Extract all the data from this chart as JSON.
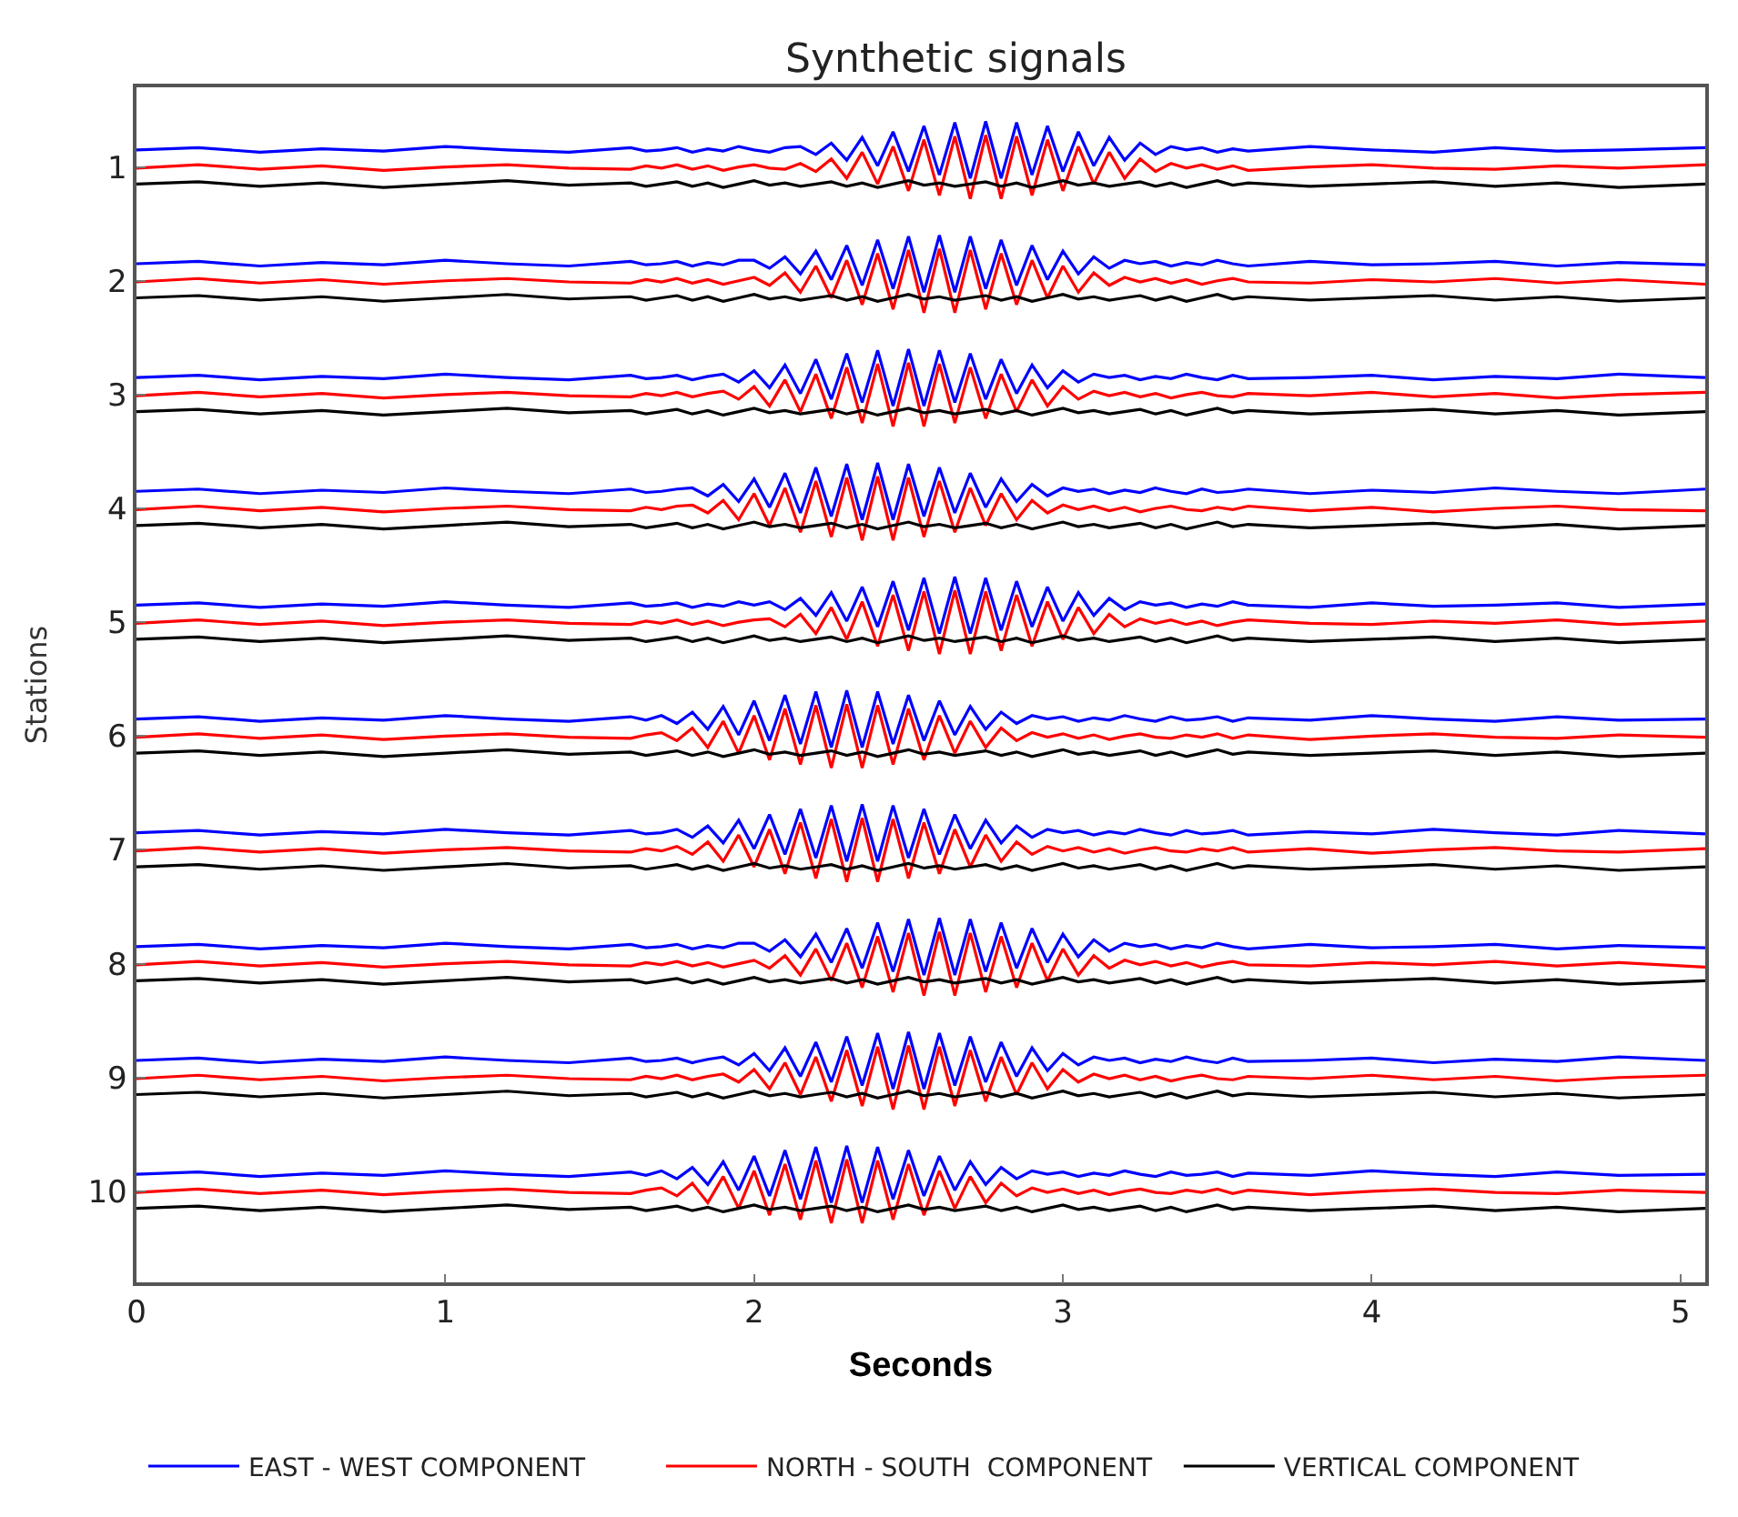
{
  "chart_data": {
    "type": "line",
    "title": "Synthetic signals",
    "xlabel": "Seconds",
    "ylabel": "Stations",
    "x": [
      0,
      0.2,
      0.4,
      0.6,
      0.8,
      1.0,
      1.2,
      1.4,
      1.6,
      1.65,
      1.7,
      1.75,
      1.8,
      1.85,
      1.9,
      1.95,
      2.0,
      2.05,
      2.1,
      2.15,
      2.2,
      2.25,
      2.3,
      2.35,
      2.4,
      2.45,
      2.5,
      2.55,
      2.6,
      2.65,
      2.7,
      2.75,
      2.8,
      2.85,
      2.9,
      2.95,
      3.0,
      3.05,
      3.1,
      3.15,
      3.2,
      3.25,
      3.3,
      3.35,
      3.4,
      3.45,
      3.5,
      3.55,
      3.6,
      3.8,
      4.0,
      4.2,
      4.4,
      4.6,
      4.8,
      5.08
    ],
    "xlim": [
      0,
      5.08
    ],
    "xticks": [
      0,
      1,
      2,
      3,
      4,
      5
    ],
    "ylim": [
      10.8,
      0.3
    ],
    "yticks": [
      1,
      2,
      3,
      4,
      5,
      6,
      7,
      8,
      9,
      10
    ],
    "legend": "bottom",
    "marker": "none",
    "line_style": "solid",
    "series": [
      {
        "name": "EAST - WEST COMPONENT",
        "color": "#0000ff",
        "values": [
          0.85,
          0.83,
          0.87,
          0.84,
          0.86,
          0.82,
          0.85,
          0.87,
          0.83,
          0.86,
          0.85,
          0.83,
          0.87,
          0.84,
          0.86,
          0.82,
          0.85,
          0.87,
          0.83,
          0.82,
          0.89,
          0.79,
          0.94,
          0.74,
          0.99,
          0.69,
          1.04,
          0.64,
          1.07,
          0.61,
          1.1,
          0.6,
          1.1,
          0.61,
          1.07,
          0.64,
          1.04,
          0.69,
          0.99,
          0.74,
          0.94,
          0.79,
          0.89,
          0.82,
          0.85,
          0.83,
          0.87,
          0.84,
          0.86,
          0.82,
          0.85,
          0.87,
          0.83,
          0.86,
          0.85,
          0.83
        ]
      },
      {
        "name": "NORTH - SOUTH  COMPONENT",
        "color": "#ff0000",
        "values": [
          1.01,
          0.98,
          1.02,
          0.99,
          1.03,
          1.0,
          0.98,
          1.01,
          1.02,
          0.99,
          1.01,
          0.98,
          1.02,
          0.99,
          1.03,
          1.0,
          0.98,
          1.01,
          1.02,
          0.97,
          1.04,
          0.93,
          1.1,
          0.87,
          1.15,
          0.82,
          1.21,
          0.76,
          1.25,
          0.73,
          1.28,
          0.72,
          1.28,
          0.73,
          1.25,
          0.76,
          1.21,
          0.82,
          1.15,
          0.87,
          1.1,
          0.93,
          1.04,
          0.97,
          1.01,
          0.98,
          1.02,
          0.99,
          1.03,
          1.0,
          0.98,
          1.01,
          1.02,
          0.99,
          1.01,
          0.98
        ]
      },
      {
        "name": "VERTICAL COMPONENT",
        "color": "#000000",
        "values": [
          1.15,
          1.13,
          1.17,
          1.14,
          1.18,
          1.15,
          1.12,
          1.16,
          1.14,
          1.17,
          1.15,
          1.13,
          1.17,
          1.14,
          1.18,
          1.15,
          1.12,
          1.16,
          1.14,
          1.17,
          1.15,
          1.13,
          1.17,
          1.14,
          1.18,
          1.15,
          1.12,
          1.16,
          1.14,
          1.17,
          1.15,
          1.13,
          1.17,
          1.14,
          1.18,
          1.15,
          1.12,
          1.16,
          1.14,
          1.17,
          1.15,
          1.13,
          1.17,
          1.14,
          1.18,
          1.15,
          1.12,
          1.16,
          1.14,
          1.17,
          1.15,
          1.13,
          1.17,
          1.14,
          1.18,
          1.15
        ]
      },
      {
        "color": "#0000ff",
        "values": [
          1.85,
          1.83,
          1.87,
          1.84,
          1.86,
          1.82,
          1.85,
          1.87,
          1.83,
          1.86,
          1.85,
          1.83,
          1.87,
          1.84,
          1.86,
          1.82,
          1.82,
          1.89,
          1.79,
          1.94,
          1.74,
          1.99,
          1.69,
          2.04,
          1.64,
          2.07,
          1.61,
          2.1,
          1.6,
          2.1,
          1.61,
          2.07,
          1.64,
          2.04,
          1.69,
          1.99,
          1.74,
          1.94,
          1.79,
          1.89,
          1.82,
          1.85,
          1.83,
          1.87,
          1.84,
          1.86,
          1.82,
          1.85,
          1.87,
          1.83,
          1.86,
          1.85,
          1.83,
          1.87,
          1.84,
          1.86
        ]
      },
      {
        "color": "#ff0000",
        "values": [
          2.01,
          1.98,
          2.02,
          1.99,
          2.03,
          2.0,
          1.98,
          2.01,
          2.02,
          1.99,
          2.01,
          1.98,
          2.02,
          1.99,
          2.03,
          2.0,
          1.97,
          2.04,
          1.93,
          2.1,
          1.87,
          2.15,
          1.82,
          2.21,
          1.76,
          2.25,
          1.73,
          2.28,
          1.72,
          2.28,
          1.73,
          2.25,
          1.76,
          2.21,
          1.82,
          2.15,
          1.87,
          2.1,
          1.93,
          2.04,
          1.97,
          2.01,
          1.98,
          2.02,
          1.99,
          2.03,
          2.0,
          1.98,
          2.01,
          2.02,
          1.99,
          2.01,
          1.98,
          2.02,
          1.99,
          2.03
        ]
      },
      {
        "color": "#000000",
        "values": [
          2.15,
          2.13,
          2.17,
          2.14,
          2.18,
          2.15,
          2.12,
          2.16,
          2.14,
          2.17,
          2.15,
          2.13,
          2.17,
          2.14,
          2.18,
          2.15,
          2.12,
          2.16,
          2.14,
          2.17,
          2.15,
          2.13,
          2.17,
          2.14,
          2.18,
          2.15,
          2.12,
          2.16,
          2.14,
          2.17,
          2.15,
          2.13,
          2.17,
          2.14,
          2.18,
          2.15,
          2.12,
          2.16,
          2.14,
          2.17,
          2.15,
          2.13,
          2.17,
          2.14,
          2.18,
          2.15,
          2.12,
          2.16,
          2.14,
          2.17,
          2.15,
          2.13,
          2.17,
          2.14,
          2.18,
          2.15
        ]
      },
      {
        "color": "#0000ff",
        "values": [
          2.85,
          2.83,
          2.87,
          2.84,
          2.86,
          2.82,
          2.85,
          2.87,
          2.83,
          2.86,
          2.85,
          2.83,
          2.87,
          2.84,
          2.82,
          2.89,
          2.79,
          2.94,
          2.74,
          2.99,
          2.69,
          3.04,
          2.64,
          3.07,
          2.61,
          3.1,
          2.6,
          3.1,
          2.61,
          3.07,
          2.64,
          3.04,
          2.69,
          2.99,
          2.74,
          2.94,
          2.79,
          2.89,
          2.82,
          2.85,
          2.83,
          2.87,
          2.84,
          2.86,
          2.82,
          2.85,
          2.87,
          2.83,
          2.86,
          2.85,
          2.83,
          2.87,
          2.84,
          2.86,
          2.82,
          2.85
        ]
      },
      {
        "color": "#ff0000",
        "values": [
          3.01,
          2.98,
          3.02,
          2.99,
          3.03,
          3.0,
          2.98,
          3.01,
          3.02,
          2.99,
          3.01,
          2.98,
          3.02,
          2.99,
          2.97,
          3.04,
          2.93,
          3.1,
          2.87,
          3.15,
          2.82,
          3.21,
          2.76,
          3.25,
          2.73,
          3.28,
          2.72,
          3.28,
          2.73,
          3.25,
          2.76,
          3.21,
          2.82,
          3.15,
          2.87,
          3.1,
          2.93,
          3.04,
          2.97,
          3.01,
          2.98,
          3.02,
          2.99,
          3.03,
          3.0,
          2.98,
          3.01,
          3.02,
          2.99,
          3.01,
          2.98,
          3.02,
          2.99,
          3.03,
          3.0,
          2.98
        ]
      },
      {
        "color": "#000000",
        "values": [
          3.15,
          3.13,
          3.17,
          3.14,
          3.18,
          3.15,
          3.12,
          3.16,
          3.14,
          3.17,
          3.15,
          3.13,
          3.17,
          3.14,
          3.18,
          3.15,
          3.12,
          3.16,
          3.14,
          3.17,
          3.15,
          3.13,
          3.17,
          3.14,
          3.18,
          3.15,
          3.12,
          3.16,
          3.14,
          3.17,
          3.15,
          3.13,
          3.17,
          3.14,
          3.18,
          3.15,
          3.12,
          3.16,
          3.14,
          3.17,
          3.15,
          3.13,
          3.17,
          3.14,
          3.18,
          3.15,
          3.12,
          3.16,
          3.14,
          3.17,
          3.15,
          3.13,
          3.17,
          3.14,
          3.18,
          3.15
        ]
      },
      {
        "color": "#0000ff",
        "values": [
          3.85,
          3.83,
          3.87,
          3.84,
          3.86,
          3.82,
          3.85,
          3.87,
          3.83,
          3.86,
          3.85,
          3.83,
          3.82,
          3.89,
          3.79,
          3.94,
          3.74,
          3.99,
          3.69,
          4.04,
          3.64,
          4.07,
          3.61,
          4.1,
          3.6,
          4.1,
          3.61,
          4.07,
          3.64,
          4.04,
          3.69,
          3.99,
          3.74,
          3.94,
          3.79,
          3.89,
          3.82,
          3.85,
          3.83,
          3.87,
          3.84,
          3.86,
          3.82,
          3.85,
          3.87,
          3.83,
          3.86,
          3.85,
          3.83,
          3.87,
          3.84,
          3.86,
          3.82,
          3.85,
          3.87,
          3.83
        ]
      },
      {
        "color": "#ff0000",
        "values": [
          4.01,
          3.98,
          4.02,
          3.99,
          4.03,
          4.0,
          3.98,
          4.01,
          4.02,
          3.99,
          4.01,
          3.98,
          3.97,
          4.04,
          3.93,
          4.1,
          3.87,
          4.15,
          3.82,
          4.21,
          3.76,
          4.25,
          3.73,
          4.28,
          3.72,
          4.28,
          3.73,
          4.25,
          3.76,
          4.21,
          3.82,
          4.15,
          3.87,
          4.1,
          3.93,
          4.04,
          3.97,
          4.01,
          3.98,
          4.02,
          3.99,
          4.03,
          4.0,
          3.98,
          4.01,
          4.02,
          3.99,
          4.01,
          3.98,
          4.02,
          3.99,
          4.03,
          4.0,
          3.98,
          4.01,
          4.02
        ]
      },
      {
        "color": "#000000",
        "values": [
          4.15,
          4.13,
          4.17,
          4.14,
          4.18,
          4.15,
          4.12,
          4.16,
          4.14,
          4.17,
          4.15,
          4.13,
          4.17,
          4.14,
          4.18,
          4.15,
          4.12,
          4.16,
          4.14,
          4.17,
          4.15,
          4.13,
          4.17,
          4.14,
          4.18,
          4.15,
          4.12,
          4.16,
          4.14,
          4.17,
          4.15,
          4.13,
          4.17,
          4.14,
          4.18,
          4.15,
          4.12,
          4.16,
          4.14,
          4.17,
          4.15,
          4.13,
          4.17,
          4.14,
          4.18,
          4.15,
          4.12,
          4.16,
          4.14,
          4.17,
          4.15,
          4.13,
          4.17,
          4.14,
          4.18,
          4.15
        ]
      },
      {
        "color": "#0000ff",
        "values": [
          4.85,
          4.83,
          4.87,
          4.84,
          4.86,
          4.82,
          4.85,
          4.87,
          4.83,
          4.86,
          4.85,
          4.83,
          4.87,
          4.84,
          4.86,
          4.82,
          4.85,
          4.82,
          4.89,
          4.79,
          4.94,
          4.74,
          4.99,
          4.69,
          5.04,
          4.64,
          5.07,
          4.61,
          5.1,
          4.6,
          5.1,
          4.61,
          5.07,
          4.64,
          5.04,
          4.69,
          4.99,
          4.74,
          4.94,
          4.79,
          4.89,
          4.82,
          4.85,
          4.83,
          4.87,
          4.84,
          4.86,
          4.82,
          4.85,
          4.87,
          4.83,
          4.86,
          4.85,
          4.83,
          4.87,
          4.84
        ]
      },
      {
        "color": "#ff0000",
        "values": [
          5.01,
          4.98,
          5.02,
          4.99,
          5.03,
          5.0,
          4.98,
          5.01,
          5.02,
          4.99,
          5.01,
          4.98,
          5.02,
          4.99,
          5.03,
          5.0,
          4.98,
          4.97,
          5.04,
          4.93,
          5.1,
          4.87,
          5.15,
          4.82,
          5.21,
          4.76,
          5.25,
          4.73,
          5.28,
          4.72,
          5.28,
          4.73,
          5.25,
          4.76,
          5.21,
          4.82,
          5.15,
          4.87,
          5.1,
          4.93,
          5.04,
          4.97,
          5.01,
          4.98,
          5.02,
          4.99,
          5.03,
          5.0,
          4.98,
          5.01,
          5.02,
          4.99,
          5.01,
          4.98,
          5.02,
          4.99
        ]
      },
      {
        "color": "#000000",
        "values": [
          5.15,
          5.13,
          5.17,
          5.14,
          5.18,
          5.15,
          5.12,
          5.16,
          5.14,
          5.17,
          5.15,
          5.13,
          5.17,
          5.14,
          5.18,
          5.15,
          5.12,
          5.16,
          5.14,
          5.17,
          5.15,
          5.13,
          5.17,
          5.14,
          5.18,
          5.15,
          5.12,
          5.16,
          5.14,
          5.17,
          5.15,
          5.13,
          5.17,
          5.14,
          5.18,
          5.15,
          5.12,
          5.16,
          5.14,
          5.17,
          5.15,
          5.13,
          5.17,
          5.14,
          5.18,
          5.15,
          5.12,
          5.16,
          5.14,
          5.17,
          5.15,
          5.13,
          5.17,
          5.14,
          5.18,
          5.15
        ]
      },
      {
        "color": "#0000ff",
        "values": [
          5.85,
          5.83,
          5.87,
          5.84,
          5.86,
          5.82,
          5.85,
          5.87,
          5.83,
          5.86,
          5.82,
          5.89,
          5.79,
          5.94,
          5.74,
          5.99,
          5.69,
          6.04,
          5.64,
          6.07,
          5.61,
          6.1,
          5.6,
          6.1,
          5.61,
          6.07,
          5.64,
          6.04,
          5.69,
          5.99,
          5.74,
          5.94,
          5.79,
          5.89,
          5.82,
          5.85,
          5.83,
          5.87,
          5.84,
          5.86,
          5.82,
          5.85,
          5.87,
          5.83,
          5.86,
          5.85,
          5.83,
          5.87,
          5.84,
          5.86,
          5.82,
          5.85,
          5.87,
          5.83,
          5.86,
          5.85
        ]
      },
      {
        "color": "#ff0000",
        "values": [
          6.01,
          5.98,
          6.02,
          5.99,
          6.03,
          6.0,
          5.98,
          6.01,
          6.02,
          5.99,
          5.97,
          6.04,
          5.93,
          6.1,
          5.87,
          6.15,
          5.82,
          6.21,
          5.76,
          6.25,
          5.73,
          6.28,
          5.72,
          6.28,
          5.73,
          6.25,
          5.76,
          6.21,
          5.82,
          6.15,
          5.87,
          6.1,
          5.93,
          6.04,
          5.97,
          6.01,
          5.98,
          6.02,
          5.99,
          6.03,
          6.0,
          5.98,
          6.01,
          6.02,
          5.99,
          6.01,
          5.98,
          6.02,
          5.99,
          6.03,
          6.0,
          5.98,
          6.01,
          6.02,
          5.99,
          6.01
        ]
      },
      {
        "color": "#000000",
        "values": [
          6.15,
          6.13,
          6.17,
          6.14,
          6.18,
          6.15,
          6.12,
          6.16,
          6.14,
          6.17,
          6.15,
          6.13,
          6.17,
          6.14,
          6.18,
          6.15,
          6.12,
          6.16,
          6.14,
          6.17,
          6.15,
          6.13,
          6.17,
          6.14,
          6.18,
          6.15,
          6.12,
          6.16,
          6.14,
          6.17,
          6.15,
          6.13,
          6.17,
          6.14,
          6.18,
          6.15,
          6.12,
          6.16,
          6.14,
          6.17,
          6.15,
          6.13,
          6.17,
          6.14,
          6.18,
          6.15,
          6.12,
          6.16,
          6.14,
          6.17,
          6.15,
          6.13,
          6.17,
          6.14,
          6.18,
          6.15
        ]
      },
      {
        "color": "#0000ff",
        "values": [
          6.85,
          6.83,
          6.87,
          6.84,
          6.86,
          6.82,
          6.85,
          6.87,
          6.83,
          6.86,
          6.85,
          6.82,
          6.89,
          6.79,
          6.94,
          6.74,
          6.99,
          6.69,
          7.04,
          6.64,
          7.07,
          6.61,
          7.1,
          6.6,
          7.1,
          6.61,
          7.07,
          6.64,
          7.04,
          6.69,
          6.99,
          6.74,
          6.94,
          6.79,
          6.89,
          6.82,
          6.85,
          6.83,
          6.87,
          6.84,
          6.86,
          6.82,
          6.85,
          6.87,
          6.83,
          6.86,
          6.85,
          6.83,
          6.87,
          6.84,
          6.86,
          6.82,
          6.85,
          6.87,
          6.83,
          6.86
        ]
      },
      {
        "color": "#ff0000",
        "values": [
          7.01,
          6.98,
          7.02,
          6.99,
          7.03,
          7.0,
          6.98,
          7.01,
          7.02,
          6.99,
          7.01,
          6.97,
          7.04,
          6.93,
          7.1,
          6.87,
          7.15,
          6.82,
          7.21,
          6.76,
          7.25,
          6.73,
          7.28,
          6.72,
          7.28,
          6.73,
          7.25,
          6.76,
          7.21,
          6.82,
          7.15,
          6.87,
          7.1,
          6.93,
          7.04,
          6.97,
          7.01,
          6.98,
          7.02,
          6.99,
          7.03,
          7.0,
          6.98,
          7.01,
          7.02,
          6.99,
          7.01,
          6.98,
          7.02,
          6.99,
          7.03,
          7.0,
          6.98,
          7.01,
          7.02,
          6.99
        ]
      },
      {
        "color": "#000000",
        "values": [
          7.15,
          7.13,
          7.17,
          7.14,
          7.18,
          7.15,
          7.12,
          7.16,
          7.14,
          7.17,
          7.15,
          7.13,
          7.17,
          7.14,
          7.18,
          7.15,
          7.12,
          7.16,
          7.14,
          7.17,
          7.15,
          7.13,
          7.17,
          7.14,
          7.18,
          7.15,
          7.12,
          7.16,
          7.14,
          7.17,
          7.15,
          7.13,
          7.17,
          7.14,
          7.18,
          7.15,
          7.12,
          7.16,
          7.14,
          7.17,
          7.15,
          7.13,
          7.17,
          7.14,
          7.18,
          7.15,
          7.12,
          7.16,
          7.14,
          7.17,
          7.15,
          7.13,
          7.17,
          7.14,
          7.18,
          7.15
        ]
      },
      {
        "color": "#0000ff",
        "values": [
          7.85,
          7.83,
          7.87,
          7.84,
          7.86,
          7.82,
          7.85,
          7.87,
          7.83,
          7.86,
          7.85,
          7.83,
          7.87,
          7.84,
          7.86,
          7.82,
          7.82,
          7.89,
          7.79,
          7.94,
          7.74,
          7.99,
          7.69,
          8.04,
          7.64,
          8.07,
          7.61,
          8.1,
          7.6,
          8.1,
          7.61,
          8.07,
          7.64,
          8.04,
          7.69,
          7.99,
          7.74,
          7.94,
          7.79,
          7.89,
          7.82,
          7.85,
          7.83,
          7.87,
          7.84,
          7.86,
          7.82,
          7.85,
          7.87,
          7.83,
          7.86,
          7.85,
          7.83,
          7.87,
          7.84,
          7.86
        ]
      },
      {
        "color": "#ff0000",
        "values": [
          8.01,
          7.98,
          8.02,
          7.99,
          8.03,
          8.0,
          7.98,
          8.01,
          8.02,
          7.99,
          8.01,
          7.98,
          8.02,
          7.99,
          8.03,
          8.0,
          7.97,
          8.04,
          7.93,
          8.1,
          7.87,
          8.15,
          7.82,
          8.21,
          7.76,
          8.25,
          7.73,
          8.28,
          7.72,
          8.28,
          7.73,
          8.25,
          7.76,
          8.21,
          7.82,
          8.15,
          7.87,
          8.1,
          7.93,
          8.04,
          7.97,
          8.01,
          7.98,
          8.02,
          7.99,
          8.03,
          8.0,
          7.98,
          8.01,
          8.02,
          7.99,
          8.01,
          7.98,
          8.02,
          7.99,
          8.03
        ]
      },
      {
        "color": "#000000",
        "values": [
          8.15,
          8.13,
          8.17,
          8.14,
          8.18,
          8.15,
          8.12,
          8.16,
          8.14,
          8.17,
          8.15,
          8.13,
          8.17,
          8.14,
          8.18,
          8.15,
          8.12,
          8.16,
          8.14,
          8.17,
          8.15,
          8.13,
          8.17,
          8.14,
          8.18,
          8.15,
          8.12,
          8.16,
          8.14,
          8.17,
          8.15,
          8.13,
          8.17,
          8.14,
          8.18,
          8.15,
          8.12,
          8.16,
          8.14,
          8.17,
          8.15,
          8.13,
          8.17,
          8.14,
          8.18,
          8.15,
          8.12,
          8.16,
          8.14,
          8.17,
          8.15,
          8.13,
          8.17,
          8.14,
          8.18,
          8.15
        ]
      },
      {
        "color": "#0000ff",
        "values": [
          8.85,
          8.83,
          8.87,
          8.84,
          8.86,
          8.82,
          8.85,
          8.87,
          8.83,
          8.86,
          8.85,
          8.83,
          8.87,
          8.84,
          8.82,
          8.89,
          8.79,
          8.94,
          8.74,
          8.99,
          8.69,
          9.04,
          8.64,
          9.07,
          8.61,
          9.1,
          8.6,
          9.1,
          8.61,
          9.07,
          8.64,
          9.04,
          8.69,
          8.99,
          8.74,
          8.94,
          8.79,
          8.89,
          8.82,
          8.85,
          8.83,
          8.87,
          8.84,
          8.86,
          8.82,
          8.85,
          8.87,
          8.83,
          8.86,
          8.85,
          8.83,
          8.87,
          8.84,
          8.86,
          8.82,
          8.85
        ]
      },
      {
        "color": "#ff0000",
        "values": [
          9.01,
          8.98,
          9.02,
          8.99,
          9.03,
          9.0,
          8.98,
          9.01,
          9.02,
          8.99,
          9.01,
          8.98,
          9.02,
          8.99,
          8.97,
          9.04,
          8.93,
          9.1,
          8.87,
          9.15,
          8.82,
          9.21,
          8.76,
          9.25,
          8.73,
          9.28,
          8.72,
          9.28,
          8.73,
          9.25,
          8.76,
          9.21,
          8.82,
          9.15,
          8.87,
          9.1,
          8.93,
          9.04,
          8.97,
          9.01,
          8.98,
          9.02,
          8.99,
          9.03,
          9.0,
          8.98,
          9.01,
          9.02,
          8.99,
          9.01,
          8.98,
          9.02,
          8.99,
          9.03,
          9.0,
          8.98
        ]
      },
      {
        "color": "#000000",
        "values": [
          9.15,
          9.13,
          9.17,
          9.14,
          9.18,
          9.15,
          9.12,
          9.16,
          9.14,
          9.17,
          9.15,
          9.13,
          9.17,
          9.14,
          9.18,
          9.15,
          9.12,
          9.16,
          9.14,
          9.17,
          9.15,
          9.13,
          9.17,
          9.14,
          9.18,
          9.15,
          9.12,
          9.16,
          9.14,
          9.17,
          9.15,
          9.13,
          9.17,
          9.14,
          9.18,
          9.15,
          9.12,
          9.16,
          9.14,
          9.17,
          9.15,
          9.13,
          9.17,
          9.14,
          9.18,
          9.15,
          9.12,
          9.16,
          9.14,
          9.17,
          9.15,
          9.13,
          9.17,
          9.14,
          9.18,
          9.15
        ]
      },
      {
        "color": "#0000ff",
        "values": [
          9.85,
          9.83,
          9.87,
          9.84,
          9.86,
          9.82,
          9.85,
          9.87,
          9.83,
          9.86,
          9.82,
          9.89,
          9.79,
          9.94,
          9.74,
          9.99,
          9.69,
          10.04,
          9.64,
          10.07,
          9.61,
          10.1,
          9.6,
          10.1,
          9.61,
          10.07,
          9.64,
          10.04,
          9.69,
          9.99,
          9.74,
          9.94,
          9.79,
          9.89,
          9.82,
          9.85,
          9.83,
          9.87,
          9.84,
          9.86,
          9.82,
          9.85,
          9.87,
          9.83,
          9.86,
          9.85,
          9.83,
          9.87,
          9.84,
          9.86,
          9.82,
          9.85,
          9.87,
          9.83,
          9.86,
          9.85
        ]
      },
      {
        "color": "#ff0000",
        "values": [
          10.01,
          9.98,
          10.02,
          9.99,
          10.03,
          10.0,
          9.98,
          10.01,
          10.02,
          9.99,
          9.97,
          10.04,
          9.93,
          10.1,
          9.87,
          10.15,
          9.82,
          10.21,
          9.76,
          10.25,
          9.73,
          10.28,
          9.72,
          10.28,
          9.73,
          10.25,
          9.76,
          10.21,
          9.82,
          10.15,
          9.87,
          10.1,
          9.93,
          10.04,
          9.97,
          10.01,
          9.98,
          10.02,
          9.99,
          10.03,
          10.0,
          9.98,
          10.01,
          10.02,
          9.99,
          10.01,
          9.98,
          10.02,
          9.99,
          10.03,
          10.0,
          9.98,
          10.01,
          10.02,
          9.99,
          10.01
        ]
      },
      {
        "color": "#000000",
        "values": [
          10.15,
          10.13,
          10.17,
          10.14,
          10.18,
          10.15,
          10.12,
          10.16,
          10.14,
          10.17,
          10.15,
          10.13,
          10.17,
          10.14,
          10.18,
          10.15,
          10.12,
          10.16,
          10.14,
          10.17,
          10.15,
          10.13,
          10.17,
          10.14,
          10.18,
          10.15,
          10.12,
          10.16,
          10.14,
          10.17,
          10.15,
          10.13,
          10.17,
          10.14,
          10.18,
          10.15,
          10.12,
          10.16,
          10.14,
          10.17,
          10.15,
          10.13,
          10.17,
          10.14,
          10.18,
          10.15,
          10.12,
          10.16,
          10.14,
          10.17,
          10.15,
          10.13,
          10.17,
          10.14,
          10.18,
          10.15
        ]
      }
    ]
  }
}
